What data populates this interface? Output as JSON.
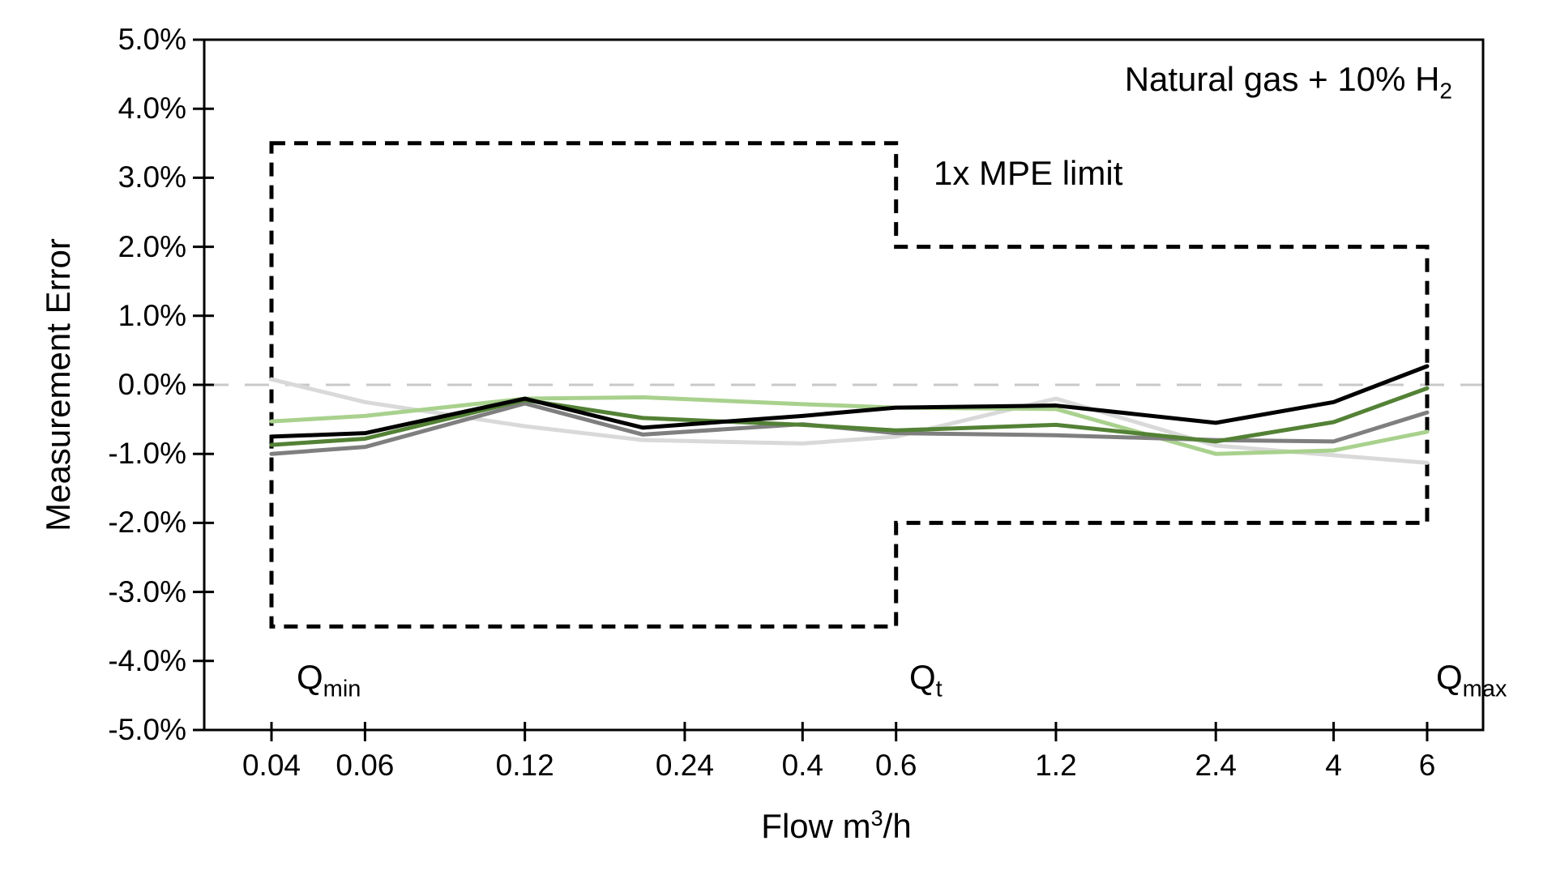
{
  "labels": {
    "ylabel": "Measurement Error",
    "xlabel": {
      "pre": "Flow m",
      "sup": "3",
      "post": "/h"
    },
    "gas": {
      "pre": "Natural gas + 10% H",
      "sub": "2"
    },
    "mpe": "1x MPE limit",
    "qmin": {
      "base": "Q",
      "sub": "min"
    },
    "qt": {
      "base": "Q",
      "sub": "t"
    },
    "qmax": {
      "base": "Q",
      "sub": "max"
    }
  },
  "chart_data": {
    "type": "line",
    "title": "Natural gas + 10% H2",
    "xlabel": "Flow m3/h",
    "ylabel": "Measurement Error",
    "x_scale": "log",
    "xlim": [
      0.03,
      7.7
    ],
    "ylim": [
      -5,
      5
    ],
    "grid": "zero-line-only",
    "legend": "none",
    "y_ticks": [
      5,
      4,
      3,
      2,
      1,
      0,
      -1,
      -2,
      -3,
      -4,
      -5
    ],
    "y_tick_labels": [
      "5.0%",
      "4.0%",
      "3.0%",
      "2.0%",
      "1.0%",
      "0.0%",
      "-1.0%",
      "-2.0%",
      "-3.0%",
      "-4.0%",
      "-5.0%"
    ],
    "x_ticks": [
      0.04,
      0.06,
      0.12,
      0.24,
      0.4,
      0.6,
      1.2,
      2.4,
      4,
      6
    ],
    "x_tick_labels": [
      "0.04",
      "0.06",
      "0.12",
      "0.24",
      "0.4",
      "0.6",
      "1.2",
      "2.4",
      "4",
      "6"
    ],
    "x": [
      0.04,
      0.06,
      0.12,
      0.2,
      0.4,
      0.6,
      1.2,
      2.4,
      4,
      6
    ],
    "series": [
      {
        "name": "light-gray-meter",
        "color": "#d9d9d9",
        "values": [
          0.08,
          -0.25,
          -0.6,
          -0.8,
          -0.85,
          -0.75,
          -0.2,
          -0.88,
          -1.02,
          -1.13
        ]
      },
      {
        "name": "light-green-meter",
        "color": "#a9d18e",
        "values": [
          -0.53,
          -0.45,
          -0.2,
          -0.18,
          -0.28,
          -0.33,
          -0.35,
          -1.0,
          -0.95,
          -0.68
        ]
      },
      {
        "name": "gray-meter",
        "color": "#7f7f7f",
        "values": [
          -1.0,
          -0.9,
          -0.27,
          -0.72,
          -0.57,
          -0.7,
          -0.73,
          -0.8,
          -0.82,
          -0.4
        ]
      },
      {
        "name": "dark-green-meter",
        "color": "#538135",
        "values": [
          -0.87,
          -0.78,
          -0.22,
          -0.48,
          -0.58,
          -0.66,
          -0.58,
          -0.82,
          -0.54,
          -0.05
        ]
      },
      {
        "name": "black-meter",
        "color": "#000000",
        "values": [
          -0.75,
          -0.7,
          -0.2,
          -0.62,
          -0.45,
          -0.33,
          -0.3,
          -0.55,
          -0.25,
          0.27
        ]
      }
    ],
    "mpe_envelope": {
      "label": "1x MPE limit",
      "color": "#000000",
      "inner_zone": {
        "flow_range": [
          0.04,
          0.6
        ],
        "limit_pct": 3.5
      },
      "outer_zone": {
        "flow_range": [
          0.6,
          6
        ],
        "limit_pct": 2.0
      }
    },
    "zero_line": {
      "y": 0,
      "color": "#c9c9c9",
      "style": "dashed"
    },
    "q_markers": {
      "qmin_flow": 0.04,
      "qt_flow": 0.6,
      "qmax_flow": 6
    }
  }
}
